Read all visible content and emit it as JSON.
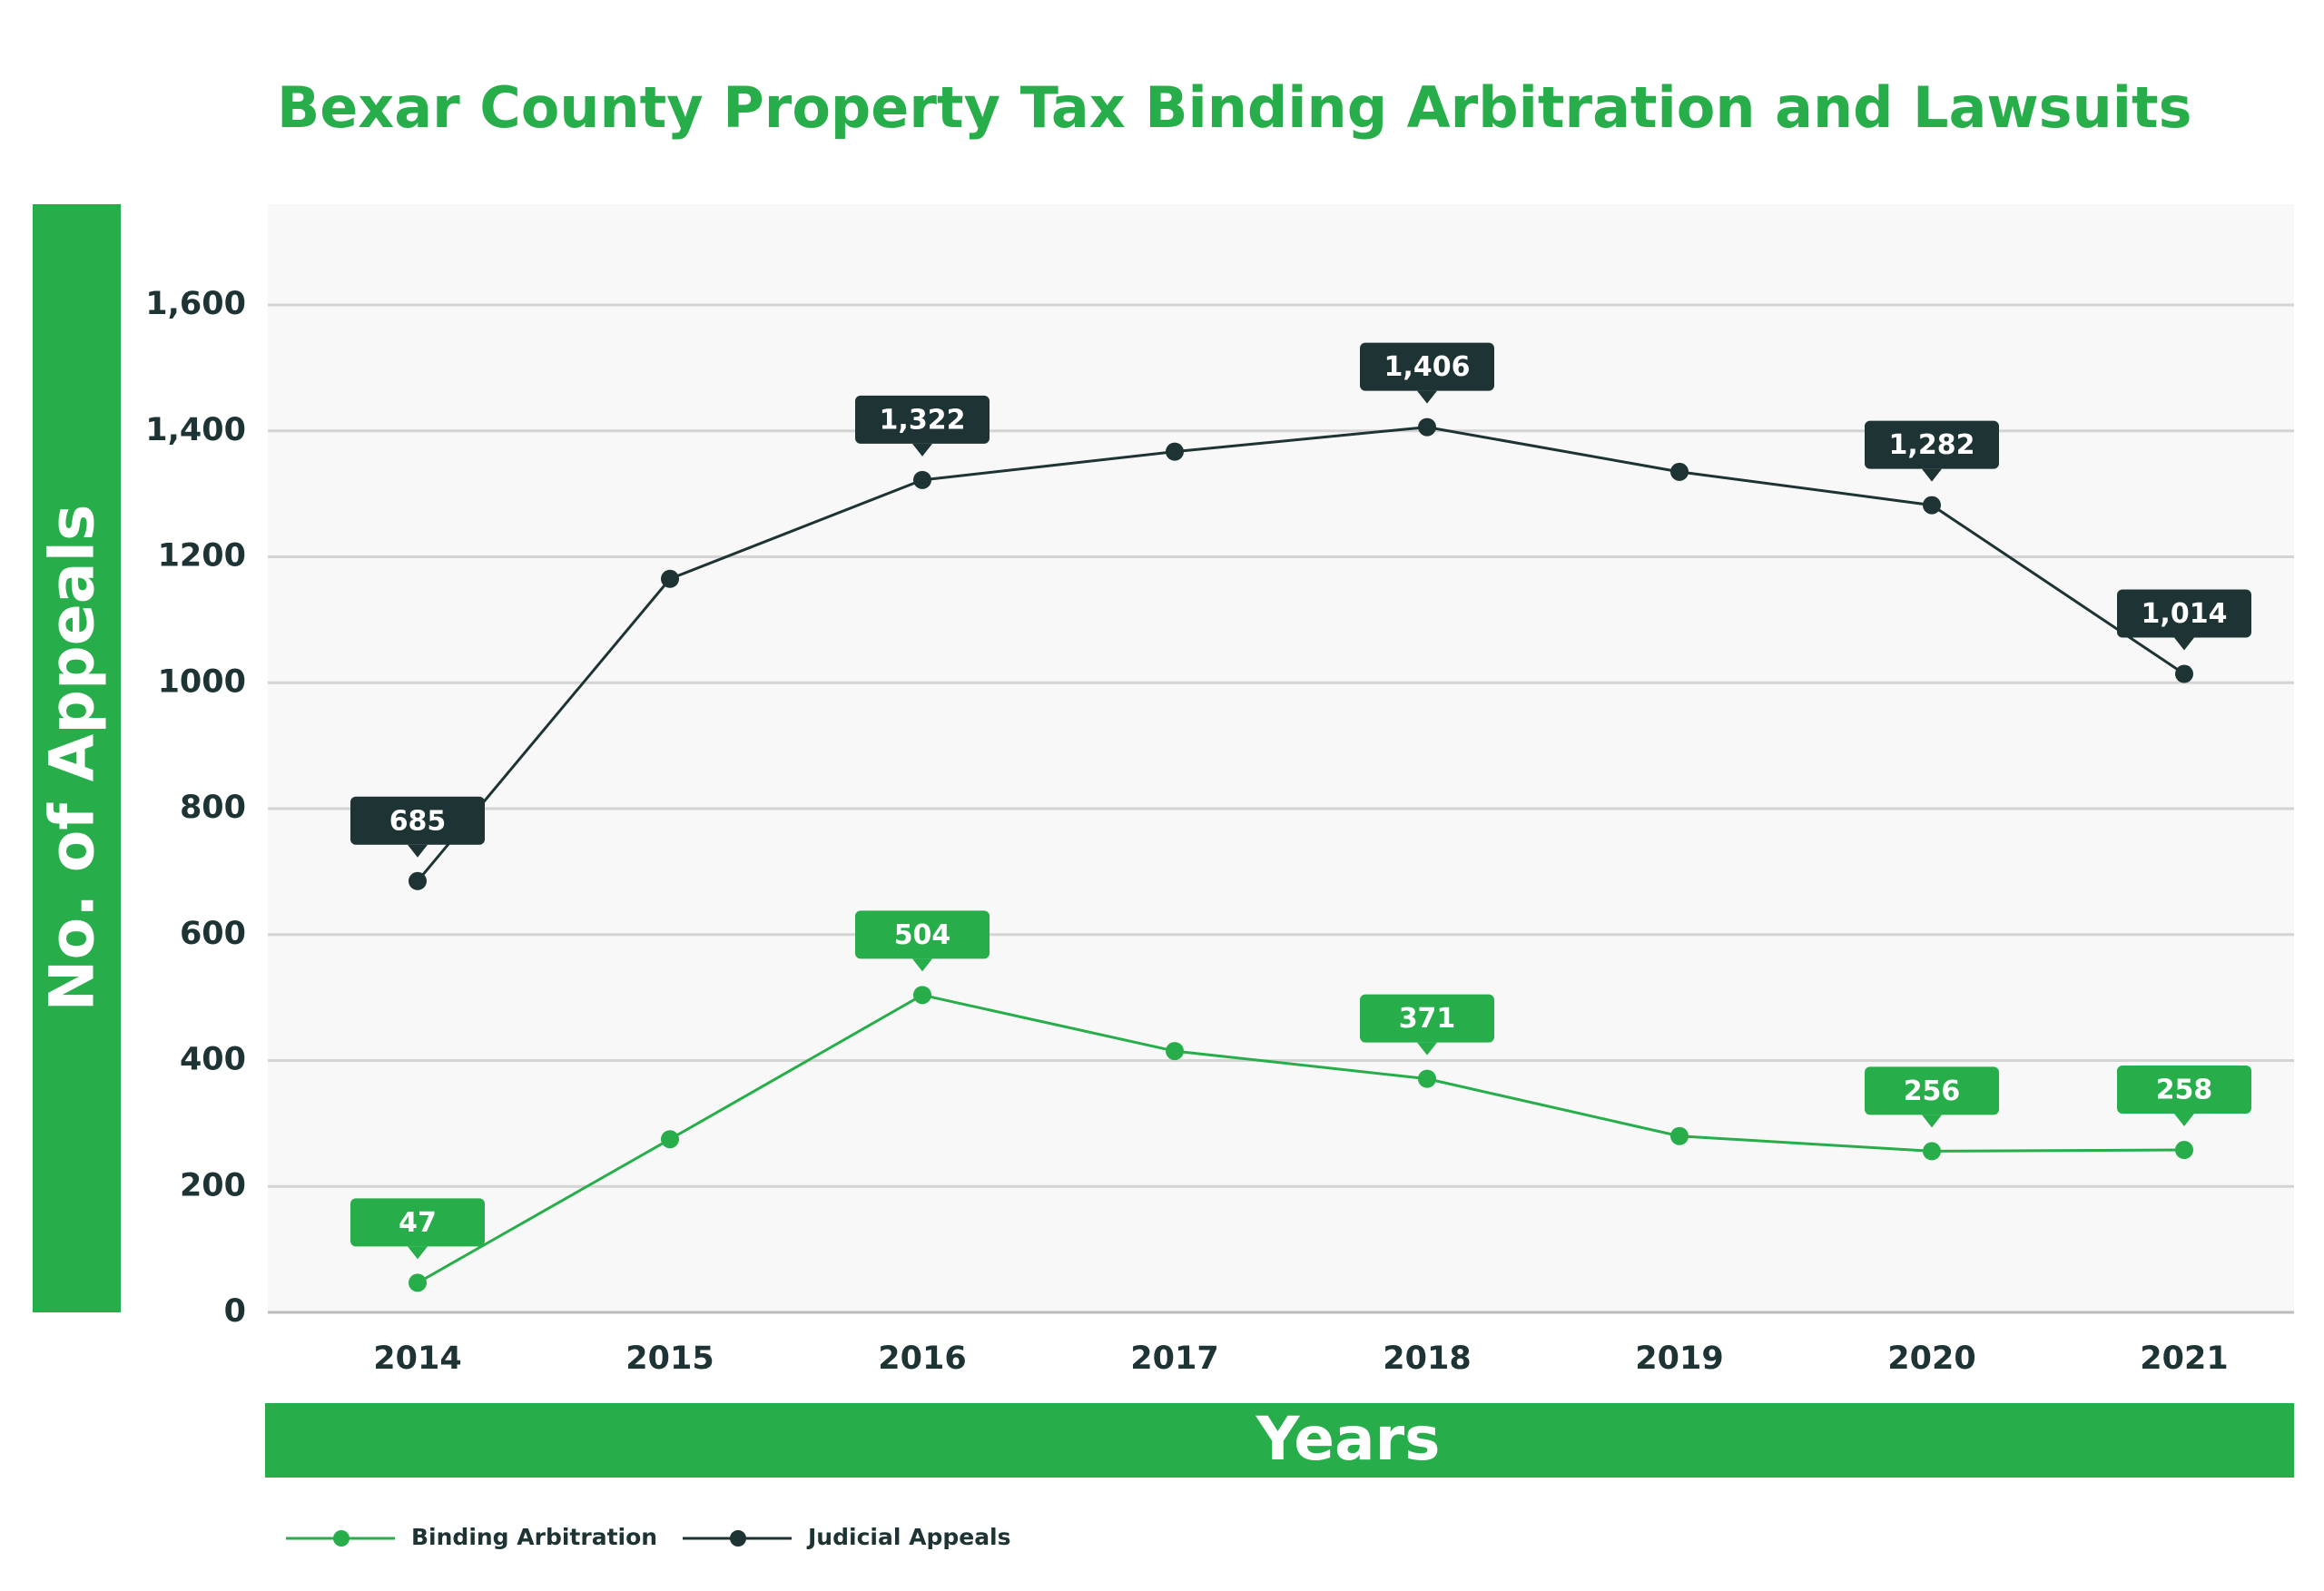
{
  "chart_data": {
    "type": "line",
    "title": "Bexar County Property Tax Binding Arbitration and Lawsuits",
    "y_label": "No. of Appeals",
    "x_label": "Years",
    "categories": [
      "2014",
      "2015",
      "2016",
      "2017",
      "2018",
      "2019",
      "2020",
      "2021"
    ],
    "series": [
      {
        "name": "Binding Arbitration",
        "color": "#27ae4a",
        "values": [
          47,
          275,
          504,
          415,
          371,
          280,
          256,
          258
        ],
        "value_labels": [
          "47",
          null,
          "504",
          null,
          "371",
          null,
          "256",
          "258"
        ]
      },
      {
        "name": "Judicial Appeals",
        "color": "#1e3333",
        "values": [
          685,
          1165,
          1322,
          1367,
          1406,
          1335,
          1282,
          1014
        ],
        "value_labels": [
          "685",
          null,
          "1,322",
          null,
          "1,406",
          null,
          "1,282",
          "1,014"
        ]
      }
    ],
    "ylim": [
      0,
      1760
    ],
    "yticks": [
      0,
      200,
      400,
      600,
      800,
      1000,
      1200,
      {
        "value": 1400,
        "label": "1,400"
      },
      {
        "value": 1600,
        "label": "1,600"
      }
    ],
    "grid": true
  }
}
